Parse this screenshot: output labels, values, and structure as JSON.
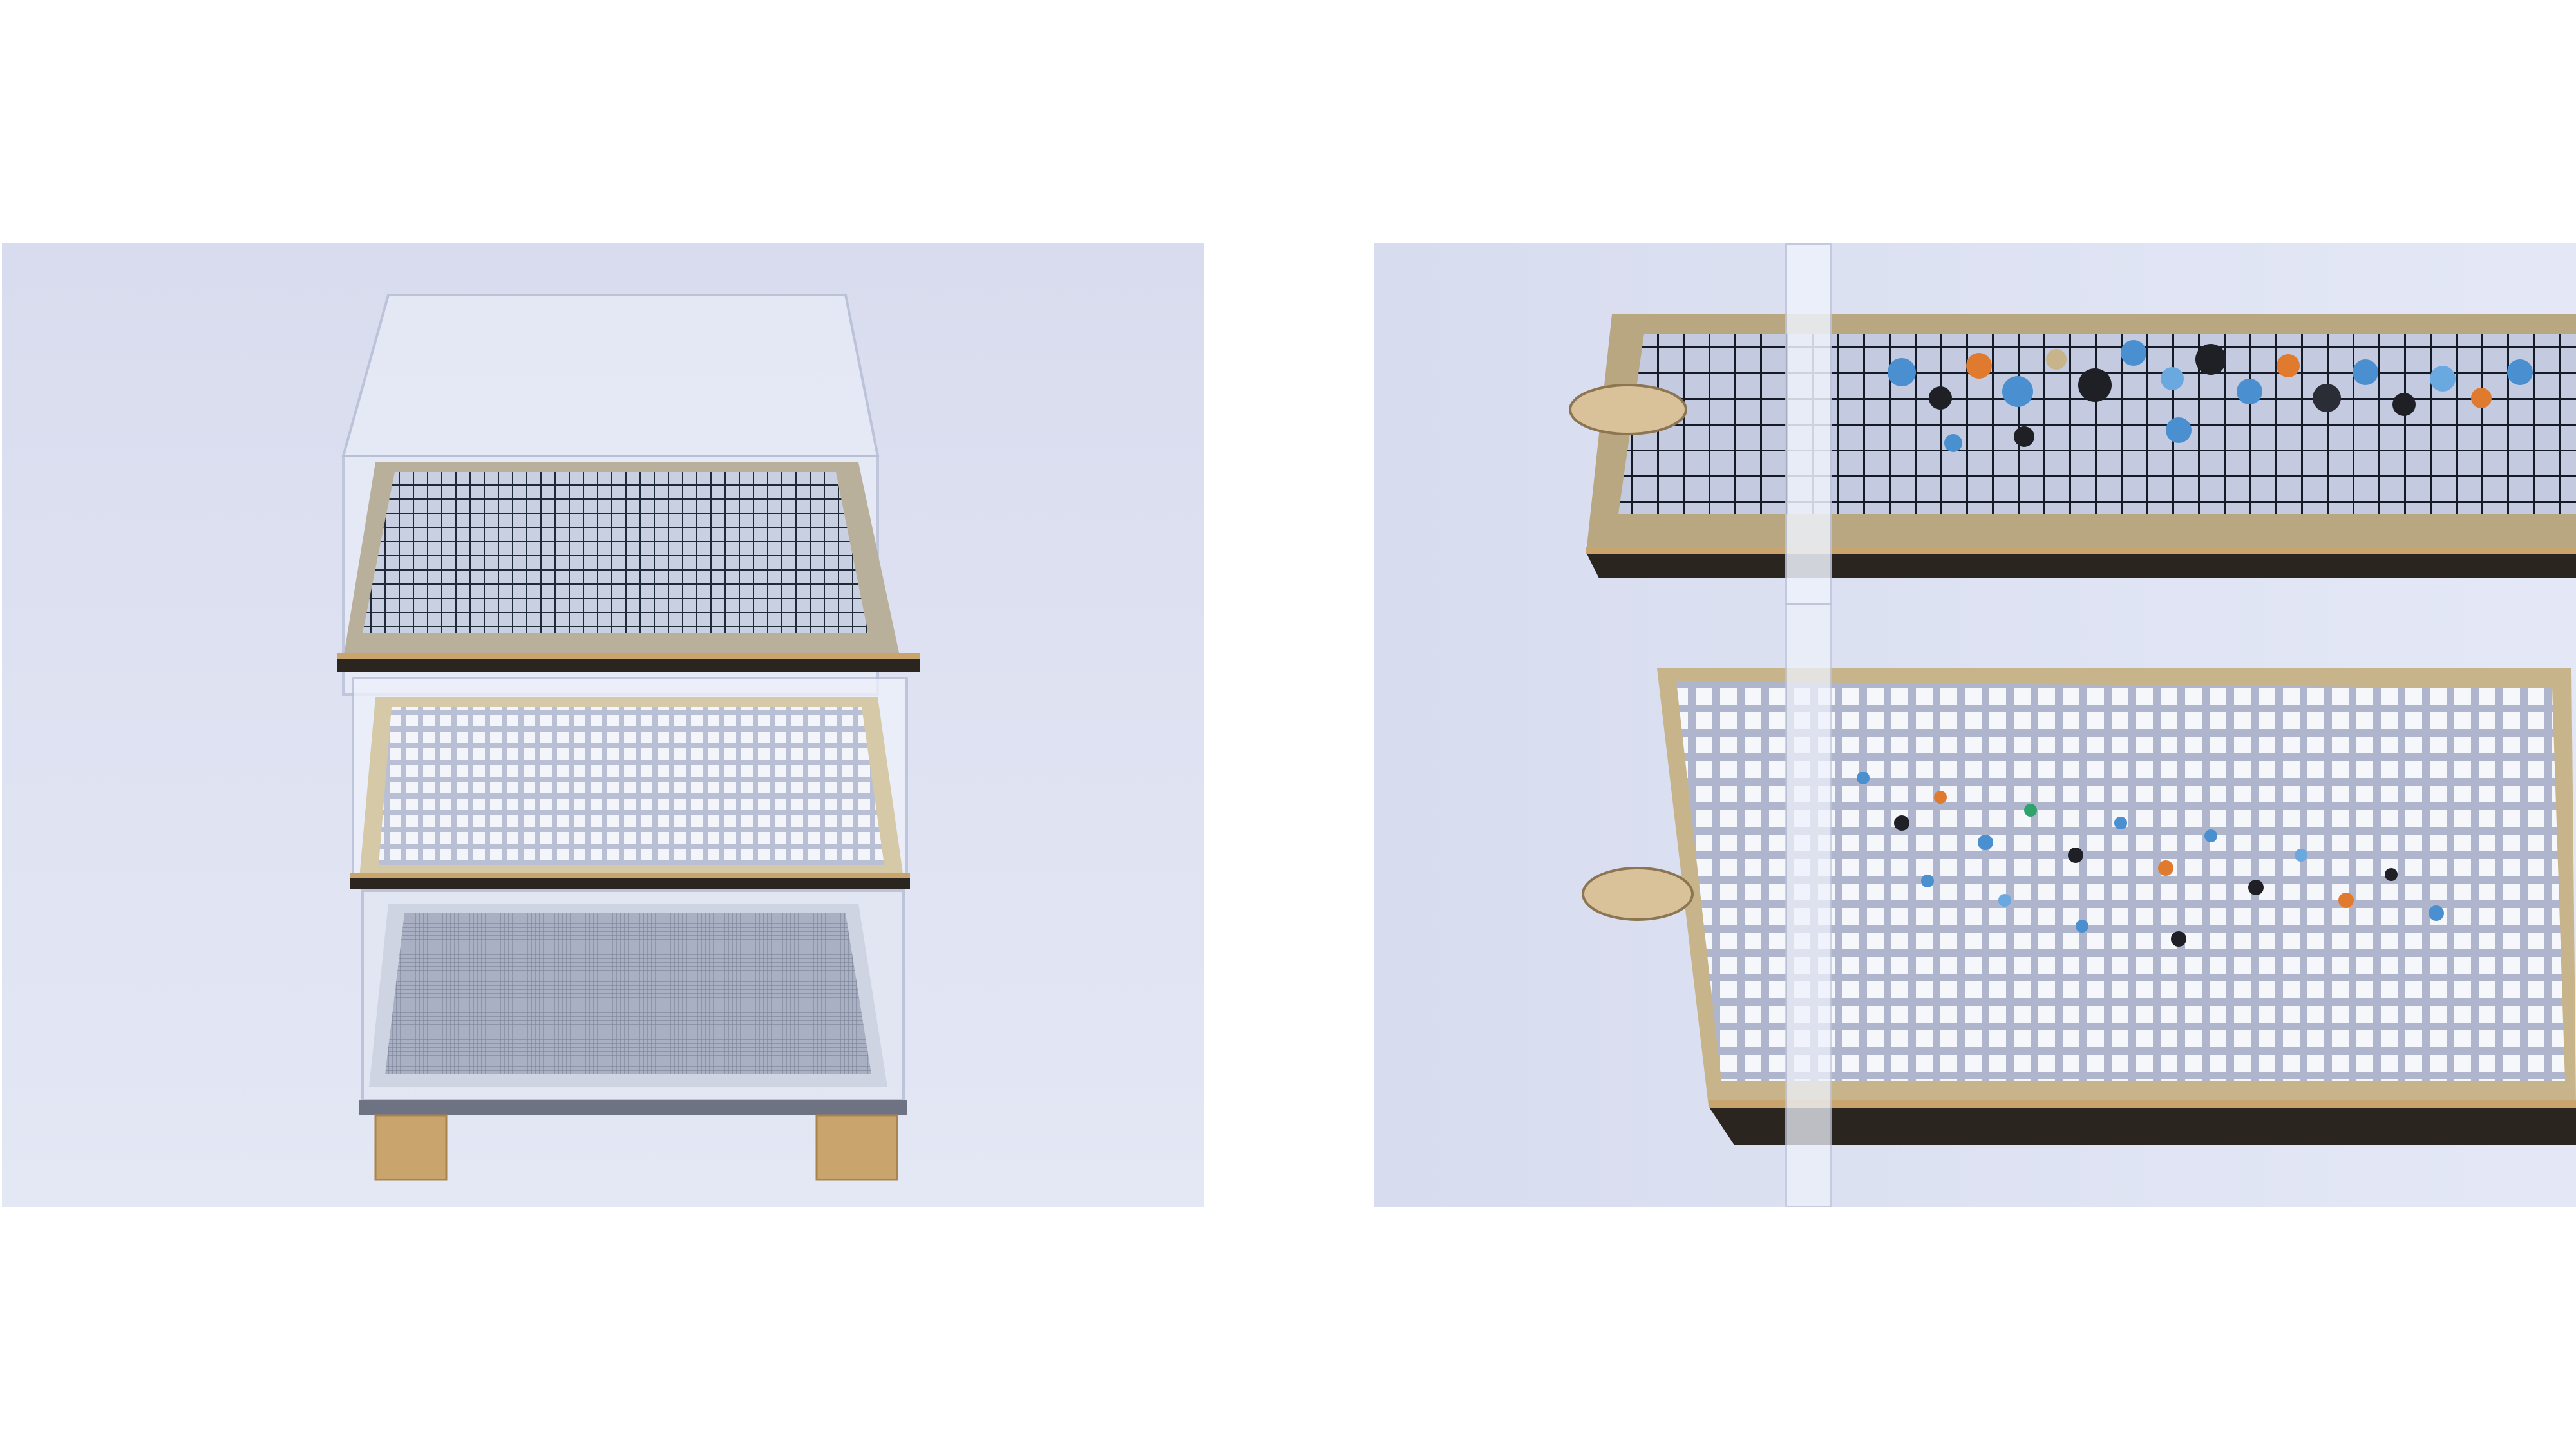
{
  "slide": {
    "background": "#ffffff"
  },
  "photos": [
    {
      "id": "left",
      "subject": "stacked-acrylic-sieve-trays-front-view",
      "colors": {
        "backdrop": "#dfe3f2",
        "frame": "#2b2520",
        "wood": "#c9a46c",
        "mesh_dark": "#1f2a38",
        "mesh_white": "#f4f5fa"
      }
    },
    {
      "id": "right",
      "subject": "sieve-trays-closeup-with-plastic-fragments",
      "colors": {
        "backdrop": "#dde3f2",
        "fragment_blue": "#4a8fd0",
        "fragment_orange": "#e07a2e",
        "fragment_black": "#1e2026",
        "sand": "#c8b48a"
      }
    }
  ]
}
